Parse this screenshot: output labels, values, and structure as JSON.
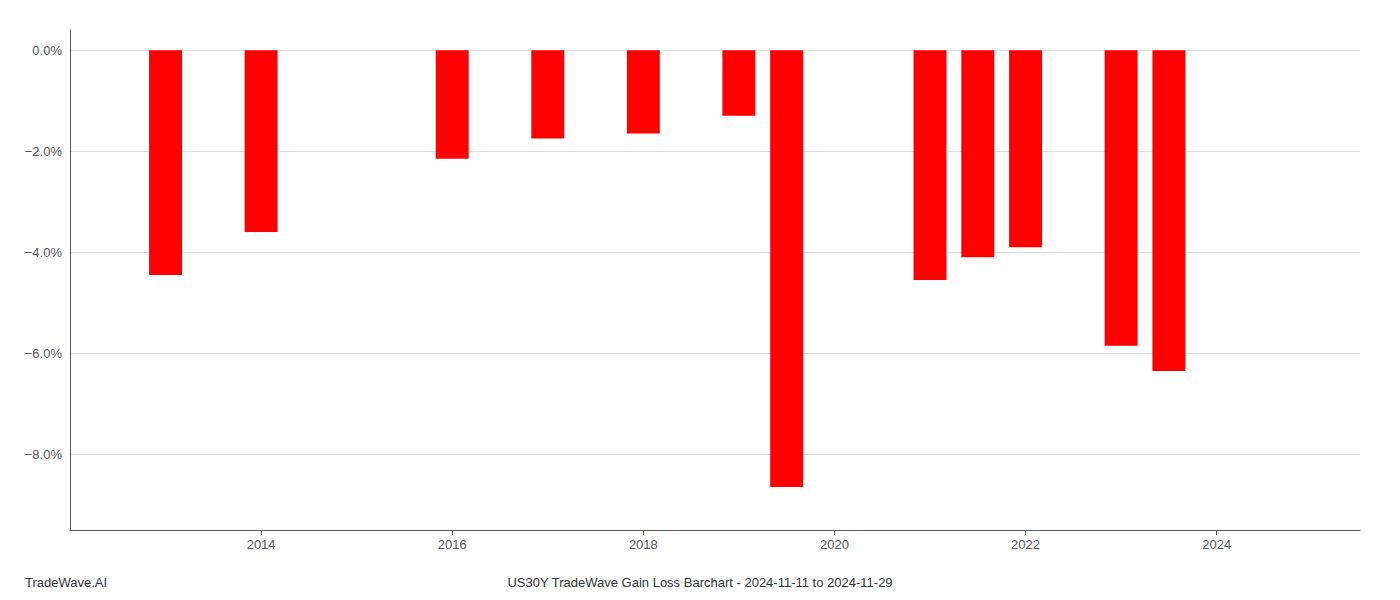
{
  "chart_data": {
    "type": "bar",
    "title": "US30Y TradeWave Gain Loss Barchart - 2024-11-11 to 2024-11-29",
    "annotations": [
      "TradeWave.AI"
    ],
    "x": [
      2013,
      2014,
      2016,
      2017,
      2018,
      2019,
      2019.5,
      2021,
      2021.5,
      2022,
      2023,
      2023.5
    ],
    "values": [
      -4.45,
      -3.6,
      -2.15,
      -1.75,
      -1.65,
      -1.3,
      -8.65,
      -4.55,
      -4.1,
      -3.9,
      -5.85,
      -6.35
    ],
    "color": "#ff0000",
    "xlim": [
      2012.0,
      2025.5
    ],
    "xticks": [
      2014,
      2016,
      2018,
      2020,
      2022,
      2024
    ],
    "ylim": [
      -9.5,
      0.4
    ],
    "yticks": [
      {
        "value": 0.0,
        "label": "0.0%"
      },
      {
        "value": -2.0,
        "label": "−2.0%"
      },
      {
        "value": -4.0,
        "label": "−4.0%"
      },
      {
        "value": -6.0,
        "label": "−6.0%"
      },
      {
        "value": -8.0,
        "label": "−8.0%"
      }
    ],
    "grid": true
  }
}
